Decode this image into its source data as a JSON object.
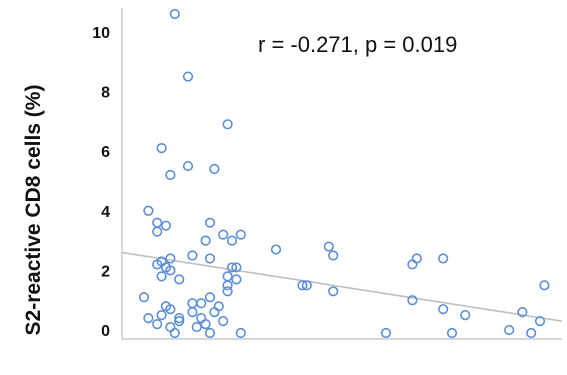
{
  "chart_data": {
    "type": "scatter",
    "title": "",
    "xlabel": "",
    "ylabel": "S2-reactive CD8 cells (%)",
    "ylim": [
      -0.3,
      10.8
    ],
    "xlim": [
      0,
      100
    ],
    "yticks": [
      0,
      2,
      4,
      6,
      8,
      10
    ],
    "yticklabels": [
      "0",
      "2",
      "4",
      "6",
      "8",
      "10"
    ],
    "annotation": "r = -0.271, p = 0.019",
    "grid": false,
    "legend": "none",
    "series": [
      {
        "points": [
          [
            12,
            10.6
          ],
          [
            15,
            8.5
          ],
          [
            24,
            6.9
          ],
          [
            9,
            6.1
          ],
          [
            15,
            5.5
          ],
          [
            21,
            5.4
          ],
          [
            11,
            5.2
          ],
          [
            6,
            4.0
          ],
          [
            8,
            3.6
          ],
          [
            10,
            3.5
          ],
          [
            20,
            3.6
          ],
          [
            8,
            3.3
          ],
          [
            23,
            3.2
          ],
          [
            27,
            3.2
          ],
          [
            25,
            3.0
          ],
          [
            19,
            3.0
          ],
          [
            47,
            2.8
          ],
          [
            35,
            2.7
          ],
          [
            48,
            2.5
          ],
          [
            16,
            2.5
          ],
          [
            20,
            2.4
          ],
          [
            11,
            2.4
          ],
          [
            9,
            2.3
          ],
          [
            10,
            2.1
          ],
          [
            8,
            2.2
          ],
          [
            25,
            2.1
          ],
          [
            26,
            2.1
          ],
          [
            67,
            2.4
          ],
          [
            73,
            2.4
          ],
          [
            66,
            2.2
          ],
          [
            11,
            2.0
          ],
          [
            9,
            1.8
          ],
          [
            24,
            1.8
          ],
          [
            13,
            1.7
          ],
          [
            26,
            1.7
          ],
          [
            42,
            1.5
          ],
          [
            41,
            1.5
          ],
          [
            48,
            1.3
          ],
          [
            24,
            1.5
          ],
          [
            96,
            1.5
          ],
          [
            24,
            1.3
          ],
          [
            5,
            1.1
          ],
          [
            20,
            1.1
          ],
          [
            66,
            1.0
          ],
          [
            18,
            0.9
          ],
          [
            16,
            0.9
          ],
          [
            10,
            0.8
          ],
          [
            11,
            0.7
          ],
          [
            22,
            0.8
          ],
          [
            21,
            0.6
          ],
          [
            16,
            0.6
          ],
          [
            6,
            0.4
          ],
          [
            9,
            0.5
          ],
          [
            13,
            0.4
          ],
          [
            18,
            0.4
          ],
          [
            73,
            0.7
          ],
          [
            78,
            0.5
          ],
          [
            91,
            0.6
          ],
          [
            13,
            0.3
          ],
          [
            19,
            0.2
          ],
          [
            23,
            0.3
          ],
          [
            95,
            0.3
          ],
          [
            8,
            0.2
          ],
          [
            11,
            0.1
          ],
          [
            17,
            0.1
          ],
          [
            88,
            0.0
          ],
          [
            60,
            -0.1
          ],
          [
            12,
            -0.1
          ],
          [
            20,
            -0.1
          ],
          [
            27,
            -0.1
          ],
          [
            75,
            -0.1
          ],
          [
            93,
            -0.1
          ]
        ]
      }
    ],
    "trendline": {
      "x": [
        0,
        100
      ],
      "y": [
        2.6,
        0.3
      ]
    },
    "colors": {
      "marker": "#5b8ed6",
      "trendline": "#bfbfbf",
      "axis": "#bfbfbf"
    }
  }
}
